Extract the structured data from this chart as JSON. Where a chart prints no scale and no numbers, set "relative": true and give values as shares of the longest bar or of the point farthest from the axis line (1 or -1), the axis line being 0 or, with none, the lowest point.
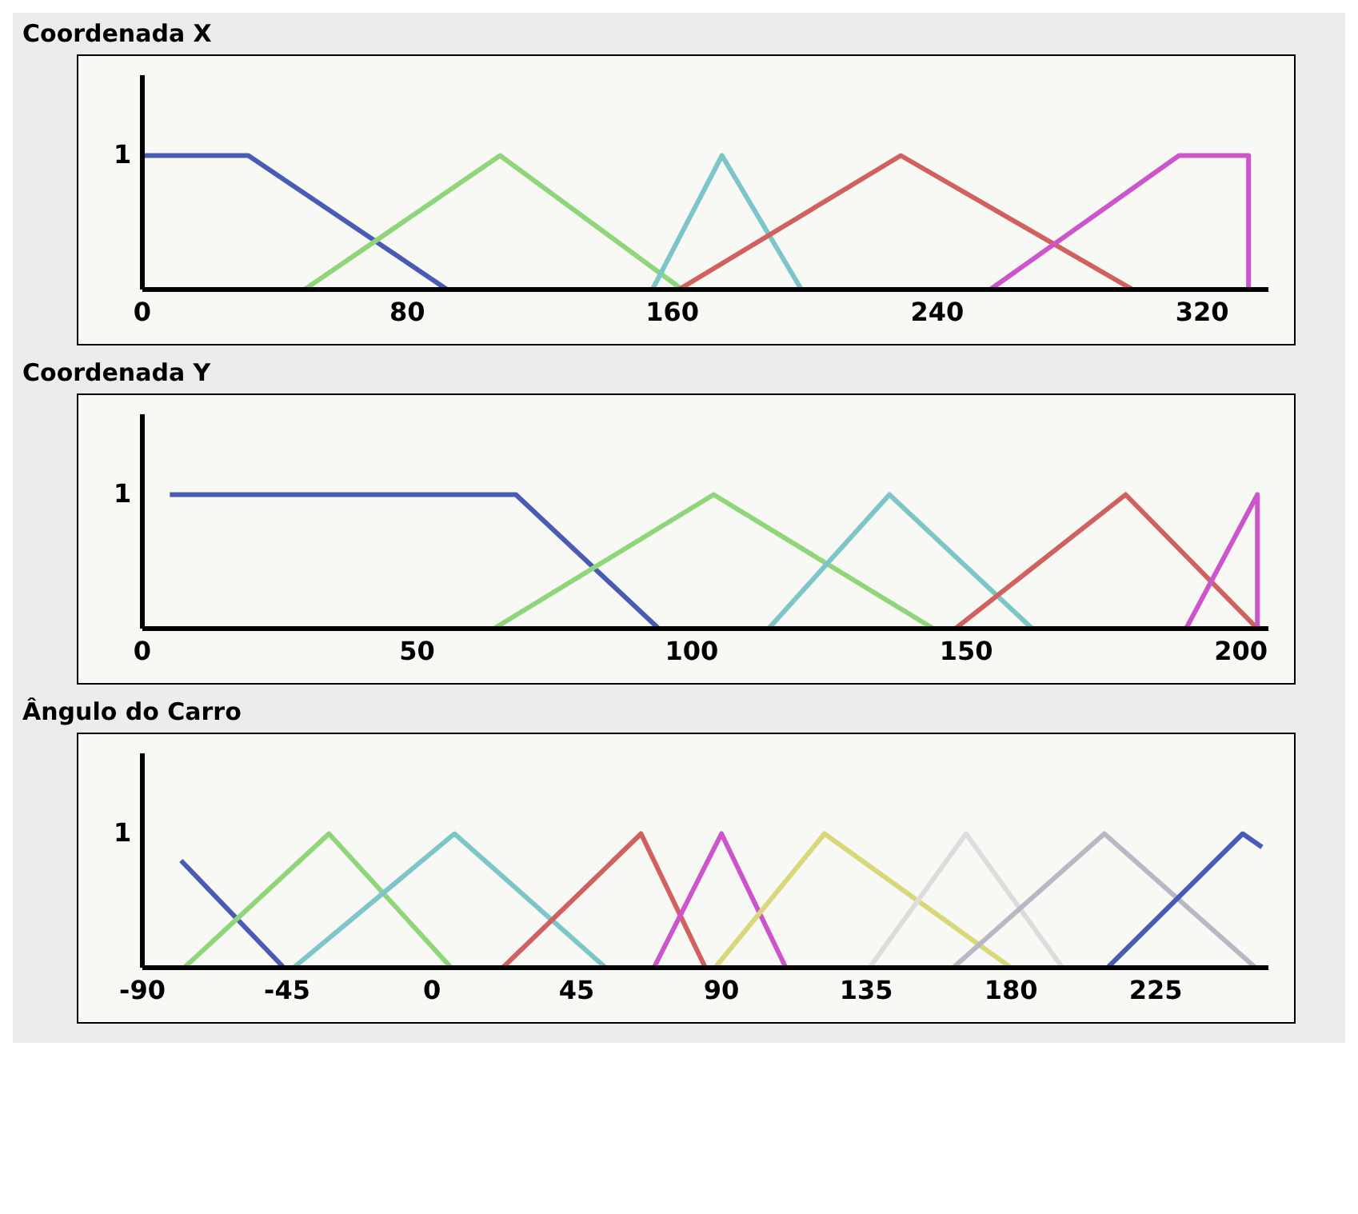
{
  "chart_data": [
    {
      "type": "line",
      "title": "Coordenada X",
      "relative": true,
      "annotations": [
        "1"
      ],
      "xlim": [
        0,
        340
      ],
      "xticks": [
        0,
        80,
        160,
        240,
        320
      ],
      "marker": "none",
      "line_style": "solid",
      "series": [
        {
          "color": "#4a5bb5",
          "x": [
            0,
            32,
            92
          ],
          "values": [
            1,
            1,
            0
          ]
        },
        {
          "color": "#8fd67a",
          "x": [
            49,
            108,
            163
          ],
          "values": [
            0,
            1,
            0
          ]
        },
        {
          "color": "#7cc5c9",
          "x": [
            154,
            175,
            199
          ],
          "values": [
            0,
            1,
            0
          ]
        },
        {
          "color": "#d0615f",
          "x": [
            162,
            229,
            299
          ],
          "values": [
            0,
            1,
            0
          ]
        },
        {
          "color": "#cc55cc",
          "x": [
            256,
            313,
            334,
            334
          ],
          "values": [
            0,
            1,
            1,
            0
          ]
        }
      ]
    },
    {
      "type": "line",
      "title": "Coordenada Y",
      "relative": true,
      "annotations": [
        "1"
      ],
      "xlim": [
        0,
        205
      ],
      "xticks": [
        0,
        50,
        100,
        150,
        200
      ],
      "marker": "none",
      "line_style": "solid",
      "series": [
        {
          "color": "#4a5bb5",
          "x": [
            5,
            68,
            94
          ],
          "values": [
            1,
            1,
            0
          ]
        },
        {
          "color": "#8fd67a",
          "x": [
            64,
            104,
            144
          ],
          "values": [
            0,
            1,
            0
          ]
        },
        {
          "color": "#7cc5c9",
          "x": [
            114,
            136,
            162
          ],
          "values": [
            0,
            1,
            0
          ]
        },
        {
          "color": "#d0615f",
          "x": [
            148,
            179,
            203
          ],
          "values": [
            0,
            1,
            0
          ]
        },
        {
          "color": "#cc55cc",
          "x": [
            190,
            203,
            203
          ],
          "values": [
            0,
            1,
            0
          ]
        }
      ]
    },
    {
      "type": "line",
      "title": "Ângulo do Carro",
      "relative": true,
      "annotations": [
        "1"
      ],
      "xlim": [
        -90,
        260
      ],
      "xticks": [
        -90,
        -45,
        0,
        45,
        90,
        135,
        180,
        225
      ],
      "marker": "none",
      "line_style": "solid",
      "series": [
        {
          "color": "#4a5bb5",
          "x": [
            -78,
            -46
          ],
          "values": [
            0.8,
            0
          ]
        },
        {
          "color": "#8fd67a",
          "x": [
            -77,
            -32,
            6
          ],
          "values": [
            0,
            1,
            0
          ]
        },
        {
          "color": "#7cc5c9",
          "x": [
            -43,
            7,
            54
          ],
          "values": [
            0,
            1,
            0
          ]
        },
        {
          "color": "#d0615f",
          "x": [
            22,
            65,
            85
          ],
          "values": [
            0,
            1,
            0
          ]
        },
        {
          "color": "#cc55cc",
          "x": [
            69,
            90,
            110
          ],
          "values": [
            0,
            1,
            0
          ]
        },
        {
          "color": "#d8d87a",
          "x": [
            88,
            122,
            180
          ],
          "values": [
            0,
            1,
            0
          ]
        },
        {
          "color": "#dcdcdc",
          "x": [
            136,
            166,
            196
          ],
          "values": [
            0,
            1,
            0
          ]
        },
        {
          "color": "#b8b8c4",
          "x": [
            162,
            209,
            256
          ],
          "values": [
            0,
            1,
            0
          ]
        },
        {
          "color": "#4a5bb5",
          "x": [
            210,
            252,
            258
          ],
          "values": [
            0,
            1,
            0.9
          ]
        }
      ]
    }
  ]
}
